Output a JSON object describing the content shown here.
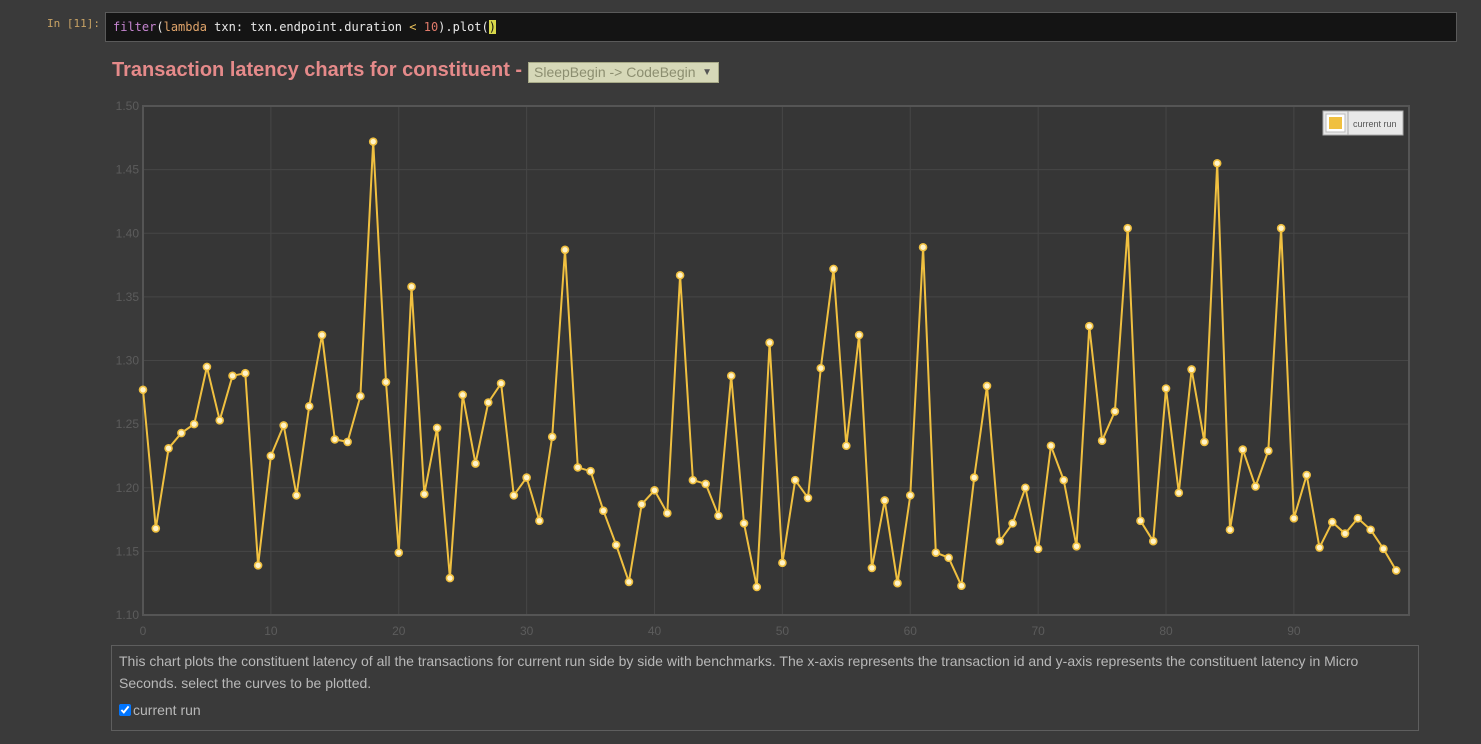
{
  "notebook": {
    "prompt": "In [11]:",
    "code": {
      "kw_filter": "filter",
      "p1": "(",
      "kw_lambda": "lambda",
      "mid": " txn: txn.endpoint.duration ",
      "op": "<",
      "sp": " ",
      "num": "10",
      "p2": ").plot(",
      "cursor": ")"
    }
  },
  "chart_header": {
    "title": "Transaction latency charts for constituent -",
    "selector_value": "SleepBegin -> CodeBegin"
  },
  "description": {
    "text": "This chart plots the constituent latency of all the transactions for current run side by side with benchmarks. The x-axis represents the transaction id and y-axis represents the constituent latency in Micro Seconds. select the curves to be plotted.",
    "checkbox_label": "current run"
  },
  "colors": {
    "series": "#f0c040",
    "background": "#3a3a3a",
    "title": "#e58a8a"
  },
  "chart_data": {
    "type": "line",
    "xlim": [
      0,
      99
    ],
    "ylim": [
      1.1,
      1.5
    ],
    "x_ticks": [
      "0",
      "10",
      "20",
      "30",
      "40",
      "50",
      "60",
      "70",
      "80",
      "90"
    ],
    "y_ticks": [
      "1.10",
      "1.15",
      "1.20",
      "1.25",
      "1.30",
      "1.35",
      "1.40",
      "1.45",
      "1.50"
    ],
    "grid": true,
    "legend_position": "top-right",
    "series": [
      {
        "name": "current run",
        "color": "#f0c040",
        "x": [
          0,
          1,
          2,
          3,
          4,
          5,
          6,
          7,
          8,
          9,
          10,
          11,
          12,
          13,
          14,
          15,
          16,
          17,
          18,
          19,
          20,
          21,
          22,
          23,
          24,
          25,
          26,
          27,
          28,
          29,
          30,
          31,
          32,
          33,
          34,
          35,
          36,
          37,
          38,
          39,
          40,
          41,
          42,
          43,
          44,
          45,
          46,
          47,
          48,
          49,
          50,
          51,
          52,
          53,
          54,
          55,
          56,
          57,
          58,
          59,
          60,
          61,
          62,
          63,
          64,
          65,
          66,
          67,
          68,
          69,
          70,
          71,
          72,
          73,
          74,
          75,
          76,
          77,
          78,
          79,
          80,
          81,
          82,
          83,
          84,
          85,
          86,
          87,
          88,
          89,
          90,
          91,
          92,
          93,
          94,
          95,
          96,
          97,
          98
        ],
        "values": [
          1.277,
          1.168,
          1.231,
          1.243,
          1.25,
          1.295,
          1.253,
          1.288,
          1.29,
          1.139,
          1.225,
          1.249,
          1.194,
          1.264,
          1.32,
          1.238,
          1.236,
          1.272,
          1.472,
          1.283,
          1.149,
          1.358,
          1.195,
          1.247,
          1.129,
          1.273,
          1.219,
          1.267,
          1.282,
          1.194,
          1.208,
          1.174,
          1.24,
          1.387,
          1.216,
          1.213,
          1.182,
          1.155,
          1.126,
          1.187,
          1.198,
          1.18,
          1.367,
          1.206,
          1.203,
          1.178,
          1.288,
          1.172,
          1.122,
          1.314,
          1.141,
          1.206,
          1.192,
          1.294,
          1.372,
          1.233,
          1.32,
          1.137,
          1.19,
          1.125,
          1.194,
          1.389,
          1.149,
          1.145,
          1.123,
          1.208,
          1.28,
          1.158,
          1.172,
          1.2,
          1.152,
          1.233,
          1.206,
          1.154,
          1.327,
          1.237,
          1.26,
          1.404,
          1.174,
          1.158,
          1.278,
          1.196,
          1.293,
          1.236,
          1.455,
          1.167,
          1.23,
          1.201,
          1.229,
          1.404,
          1.176,
          1.21,
          1.153,
          1.173,
          1.164,
          1.176,
          1.167,
          1.152,
          1.135
        ]
      }
    ]
  }
}
